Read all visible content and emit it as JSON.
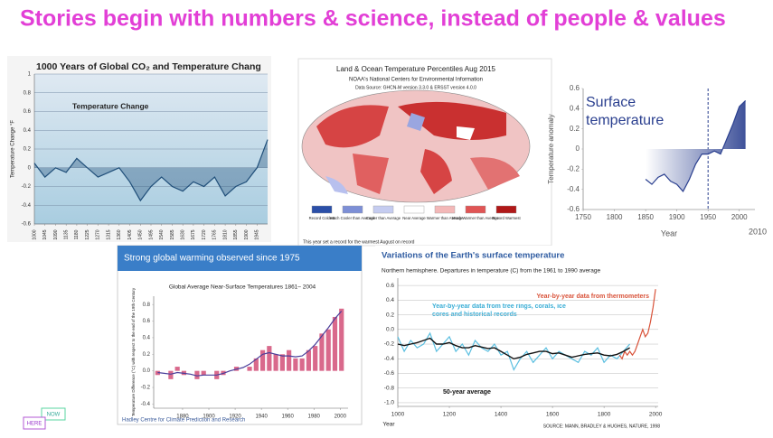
{
  "title": "Stories begin with numbers & science, instead of people & values",
  "badge": [
    "NOW",
    "HERE"
  ],
  "chart_data": [
    {
      "type": "line",
      "title": "1000 Years of Global CO₂ and Temperature Chang",
      "annotation": "Temperature Change",
      "y_label": "Temperature Change °F",
      "area": true,
      "grid": true,
      "xlim": [
        1000,
        1990
      ],
      "ylim": [
        -0.6,
        1
      ],
      "xticks": [
        1000,
        1045,
        1090,
        1135,
        1180,
        1225,
        1270,
        1315,
        1360,
        1405,
        1450,
        1495,
        1540,
        1585,
        1630,
        1675,
        1720,
        1765,
        1810,
        1855,
        1900,
        1945
      ],
      "yticks": [
        -0.6,
        -0.4,
        -0.2,
        0,
        0.2,
        0.4,
        0.6,
        0.8,
        1
      ],
      "series": [
        {
          "color": "#1f4e79",
          "x": [
            1000,
            1045,
            1090,
            1135,
            1180,
            1225,
            1270,
            1315,
            1360,
            1405,
            1450,
            1495,
            1540,
            1585,
            1630,
            1675,
            1720,
            1765,
            1810,
            1855,
            1900,
            1945,
            1990
          ],
          "values": [
            0.05,
            -0.1,
            0.0,
            -0.05,
            0.1,
            0.0,
            -0.1,
            -0.05,
            0.0,
            -0.15,
            -0.35,
            -0.2,
            -0.1,
            -0.2,
            -0.25,
            -0.15,
            -0.2,
            -0.1,
            -0.3,
            -0.2,
            -0.15,
            0.0,
            0.3
          ]
        }
      ]
    },
    {
      "type": "map",
      "title": "Land & Ocean Temperature Percentiles Aug 2015",
      "subtitle": "NOAA's National Centers for Environmental Information",
      "source": "Data Source: GHCN-M version 3.3.0 & ERSST version 4.0.0",
      "note": "This year set a record for the warmest August on record",
      "legend": [
        {
          "label": "Record Coldest",
          "color": "#2b4fa8"
        },
        {
          "label": "Much Cooler than Average",
          "color": "#7d8fd6"
        },
        {
          "label": "Cooler than Average",
          "color": "#c5ccf0"
        },
        {
          "label": "Near Average",
          "color": "#ffffff"
        },
        {
          "label": "Warmer than Average",
          "color": "#f3b8b8"
        },
        {
          "label": "Much Warmer than Average",
          "color": "#e05555"
        },
        {
          "label": "Record Warmest",
          "color": "#b01818"
        }
      ]
    },
    {
      "type": "line",
      "title": "Surface temperature",
      "y_label": "Temperature anomaly",
      "x_label": "Year",
      "annotation": "2010",
      "area": true,
      "reference_x": 1950,
      "xlim": [
        1750,
        2025
      ],
      "ylim": [
        -0.6,
        0.6
      ],
      "xticks": [
        1750,
        1800,
        1850,
        1900,
        1950,
        2000
      ],
      "yticks": [
        -0.6,
        -0.4,
        -0.2,
        0,
        0.2,
        0.4,
        0.6
      ],
      "series": [
        {
          "color": "#2a3f8f",
          "x": [
            1850,
            1860,
            1870,
            1880,
            1890,
            1900,
            1910,
            1920,
            1930,
            1940,
            1950,
            1960,
            1970,
            1980,
            1990,
            2000,
            2010
          ],
          "values": [
            -0.3,
            -0.35,
            -0.28,
            -0.25,
            -0.32,
            -0.35,
            -0.42,
            -0.3,
            -0.15,
            -0.05,
            -0.05,
            -0.02,
            -0.05,
            0.1,
            0.25,
            0.42,
            0.48
          ]
        }
      ]
    },
    {
      "type": "bar",
      "title": "Strong global warming observed since 1975",
      "subtitle": "Global Average Near-Surface Temperatures 1861– 2004",
      "y_label": "Temperature Difference (°C) with respect to the end of the 19th Century",
      "footer": "Hadley Centre for Climate Prediction and Research",
      "xlim": [
        1858,
        2006
      ],
      "ylim": [
        -0.45,
        0.9
      ],
      "xticks": [
        1880,
        1900,
        1920,
        1940,
        1960,
        1980,
        2000
      ],
      "yticks": [
        -0.4,
        -0.2,
        {
          "value": 0,
          "label": "0.0"
        },
        0.2,
        0.4,
        0.6,
        0.8
      ],
      "series": [
        {
          "type": "bar",
          "color": "#d9698c",
          "x": [
            1861,
            1866,
            1871,
            1876,
            1881,
            1886,
            1891,
            1896,
            1901,
            1906,
            1911,
            1916,
            1921,
            1926,
            1931,
            1936,
            1941,
            1946,
            1951,
            1956,
            1961,
            1966,
            1971,
            1976,
            1981,
            1986,
            1991,
            1996,
            2001
          ],
          "values": [
            -0.05,
            0.0,
            -0.1,
            0.05,
            -0.05,
            0.0,
            -0.1,
            -0.05,
            0.0,
            -0.1,
            -0.05,
            0.0,
            0.05,
            0.0,
            0.05,
            0.15,
            0.25,
            0.3,
            0.2,
            0.2,
            0.25,
            0.15,
            0.15,
            0.25,
            0.3,
            0.45,
            0.5,
            0.65,
            0.75
          ]
        },
        {
          "type": "line",
          "color": "#4a3f9a",
          "x": [
            1861,
            1866,
            1871,
            1876,
            1881,
            1886,
            1891,
            1896,
            1901,
            1906,
            1911,
            1916,
            1921,
            1926,
            1931,
            1936,
            1941,
            1946,
            1951,
            1956,
            1961,
            1966,
            1971,
            1976,
            1981,
            1986,
            1991,
            1996,
            2001
          ],
          "values": [
            -0.02,
            -0.03,
            -0.04,
            -0.02,
            -0.03,
            -0.04,
            -0.06,
            -0.05,
            -0.05,
            -0.05,
            -0.03,
            0.0,
            0.02,
            0.04,
            0.08,
            0.14,
            0.2,
            0.22,
            0.2,
            0.18,
            0.18,
            0.17,
            0.18,
            0.24,
            0.32,
            0.42,
            0.52,
            0.63,
            0.72
          ]
        }
      ]
    },
    {
      "type": "line",
      "title": "Variations of the Earth's surface temperature",
      "subtitle": "Northern hemisphere. Departures in temperature (C) from the 1961 to 1990 average",
      "x_label": "Year",
      "source": "SOURCE: MANN, BRADLEY & HUGHES, NATURE, 1998",
      "grid": true,
      "xlim": [
        1000,
        2010
      ],
      "ylim": [
        -1.05,
        0.7
      ],
      "xticks": [
        1000,
        1200,
        1400,
        1600,
        1800,
        2000
      ],
      "yticks": [
        {
          "value": -1,
          "label": "-1.0"
        },
        -0.8,
        -0.6,
        -0.4,
        -0.2,
        {
          "value": 0,
          "label": "0.0"
        },
        0.2,
        0.4,
        0.6
      ],
      "series": [
        {
          "name": "Year-by-year data from tree rings, corals, ice cores and historical records",
          "color": "#5bbfe0",
          "x": [
            1000,
            1025,
            1050,
            1075,
            1100,
            1125,
            1150,
            1175,
            1200,
            1225,
            1250,
            1275,
            1300,
            1325,
            1350,
            1375,
            1400,
            1425,
            1450,
            1475,
            1500,
            1525,
            1550,
            1575,
            1600,
            1625,
            1650,
            1675,
            1700,
            1725,
            1750,
            1775,
            1800,
            1825,
            1850,
            1875,
            1900
          ],
          "values": [
            -0.1,
            -0.3,
            -0.15,
            -0.25,
            -0.2,
            -0.05,
            -0.3,
            -0.2,
            -0.1,
            -0.3,
            -0.2,
            -0.35,
            -0.15,
            -0.25,
            -0.3,
            -0.2,
            -0.35,
            -0.3,
            -0.55,
            -0.4,
            -0.3,
            -0.45,
            -0.35,
            -0.25,
            -0.4,
            -0.3,
            -0.35,
            -0.4,
            -0.45,
            -0.3,
            -0.35,
            -0.25,
            -0.45,
            -0.35,
            -0.4,
            -0.3,
            -0.2
          ]
        },
        {
          "name": "Year-by-year data from thermometers",
          "color": "#d9533a",
          "x": [
            1860,
            1870,
            1880,
            1890,
            1900,
            1910,
            1920,
            1930,
            1940,
            1950,
            1960,
            1970,
            1980,
            1990,
            2000
          ],
          "values": [
            -0.35,
            -0.4,
            -0.3,
            -0.35,
            -0.3,
            -0.35,
            -0.3,
            -0.2,
            -0.1,
            0.0,
            -0.1,
            -0.05,
            0.1,
            0.3,
            0.55
          ]
        },
        {
          "name": "50-year average",
          "color": "#111111",
          "x": [
            1000,
            1025,
            1050,
            1075,
            1100,
            1125,
            1150,
            1175,
            1200,
            1225,
            1250,
            1275,
            1300,
            1325,
            1350,
            1375,
            1400,
            1425,
            1450,
            1475,
            1500,
            1525,
            1550,
            1575,
            1600,
            1625,
            1650,
            1675,
            1700,
            1725,
            1750,
            1775,
            1800,
            1825,
            1850,
            1875,
            1900
          ],
          "values": [
            -0.2,
            -0.22,
            -0.2,
            -0.18,
            -0.15,
            -0.12,
            -0.2,
            -0.2,
            -0.18,
            -0.22,
            -0.25,
            -0.25,
            -0.22,
            -0.24,
            -0.26,
            -0.25,
            -0.3,
            -0.35,
            -0.4,
            -0.38,
            -0.34,
            -0.32,
            -0.3,
            -0.3,
            -0.33,
            -0.32,
            -0.35,
            -0.38,
            -0.36,
            -0.34,
            -0.33,
            -0.32,
            -0.35,
            -0.36,
            -0.34,
            -0.3,
            -0.25
          ]
        }
      ]
    }
  ]
}
